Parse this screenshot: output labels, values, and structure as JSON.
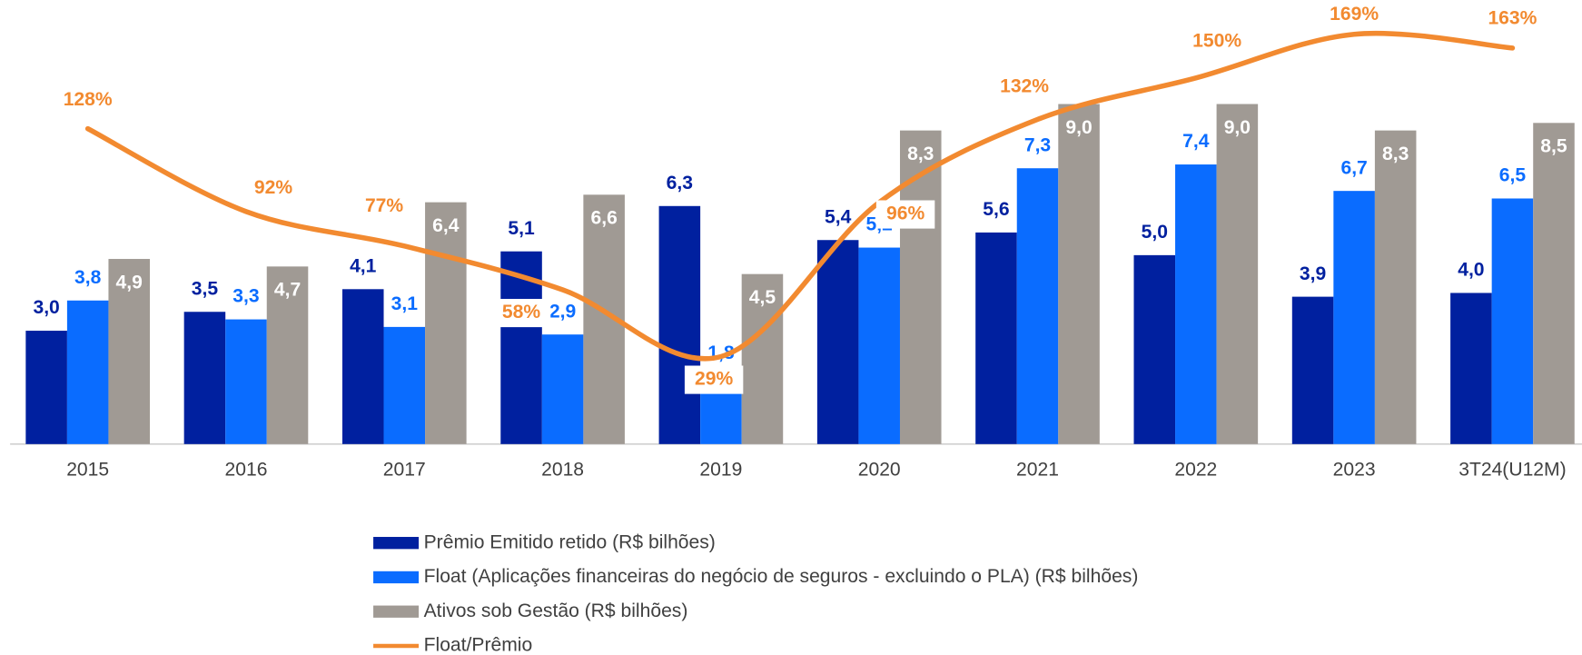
{
  "chart_data": {
    "type": "bar",
    "categories": [
      "2015",
      "2016",
      "2017",
      "2018",
      "2019",
      "2020",
      "2021",
      "2022",
      "2023",
      "3T24(U12M)"
    ],
    "series": [
      {
        "name": "Prêmio Emitido retido (R$ bilhões)",
        "type": "bar",
        "color": "#00209f",
        "values": [
          3.0,
          3.5,
          4.1,
          5.1,
          6.3,
          5.4,
          5.6,
          5.0,
          3.9,
          4.0
        ],
        "value_labels": [
          "3,0",
          "3,5",
          "4,1",
          "5,1",
          "6,3",
          "5,4",
          "5,6",
          "5,0",
          "3,9",
          "4,0"
        ]
      },
      {
        "name": "Float (Aplicações financeiras do negócio de seguros - excluindo o PLA) (R$ bilhões)",
        "type": "bar",
        "color": "#0a6cff",
        "values": [
          3.8,
          3.3,
          3.1,
          2.9,
          1.8,
          5.2,
          7.3,
          7.4,
          6.7,
          6.5
        ],
        "value_labels": [
          "3,8",
          "3,3",
          "3,1",
          "2,9",
          "1,8",
          "5,2",
          "7,3",
          "7,4",
          "6,7",
          "6,5"
        ]
      },
      {
        "name": "Ativos sob Gestão (R$ bilhões)",
        "type": "bar",
        "color": "#a09a94",
        "values": [
          4.9,
          4.7,
          6.4,
          6.6,
          4.5,
          8.3,
          9.0,
          9.0,
          8.3,
          8.5
        ],
        "value_labels": [
          "4,9",
          "4,7",
          "6,4",
          "6,6",
          "4,5",
          "8,3",
          "9,0",
          "9,0",
          "8,3",
          "8,5"
        ]
      },
      {
        "name": "Float/Prêmio",
        "type": "line",
        "axis": "y2",
        "color": "#f28a30",
        "values": [
          128,
          92,
          77,
          58,
          29,
          96,
          132,
          150,
          169,
          163
        ],
        "value_labels": [
          "128%",
          "92%",
          "77%",
          "58%",
          "29%",
          "96%",
          "132%",
          "150%",
          "169%",
          "163%"
        ]
      }
    ],
    "ylim": [
      0,
      11.7
    ],
    "y2lim": [
      -9,
      183
    ],
    "legend": "bottom"
  }
}
